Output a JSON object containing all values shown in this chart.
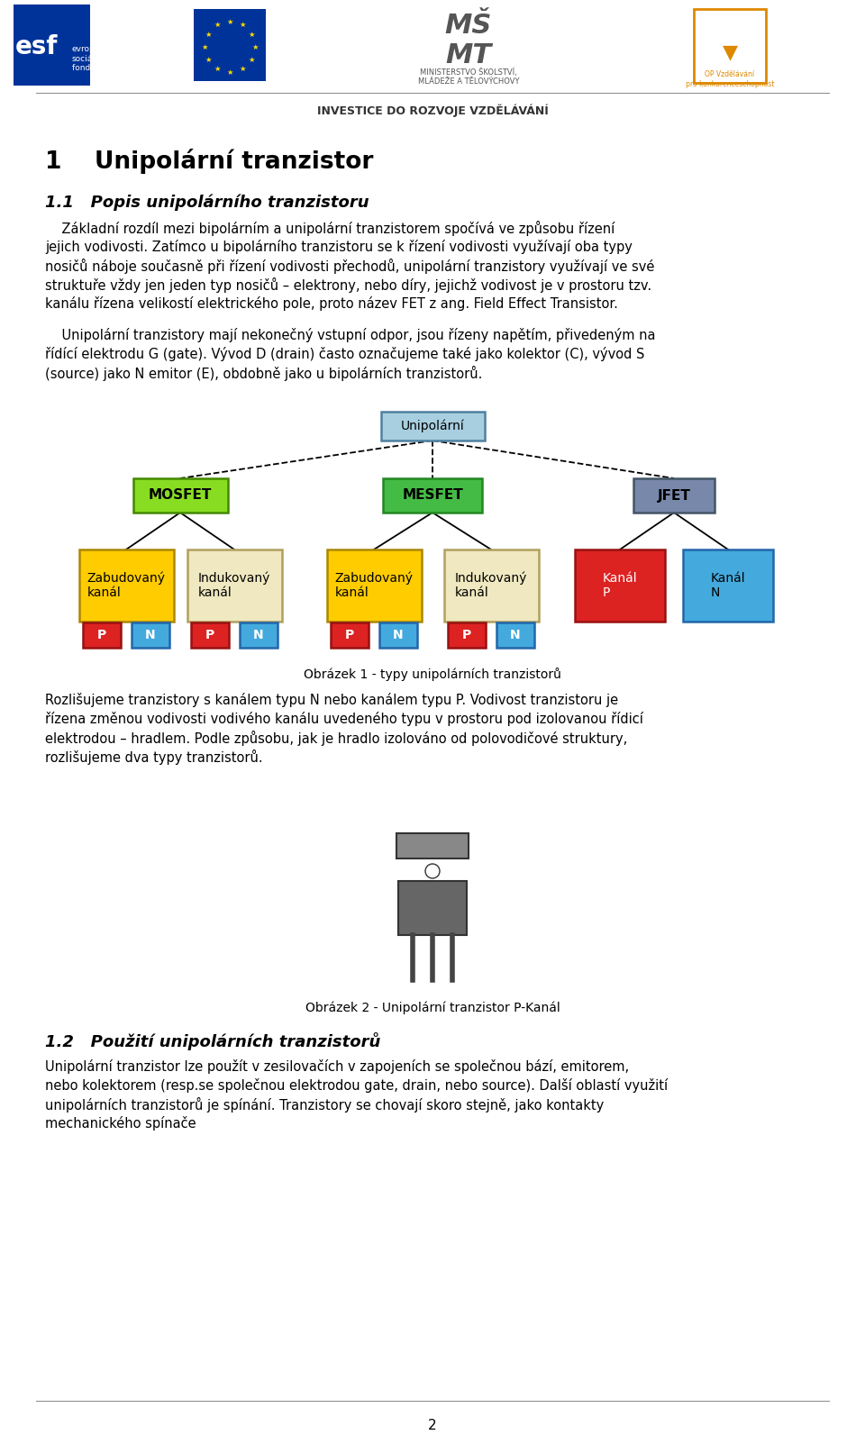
{
  "title_section": "1    Unipolární tranzistor",
  "subtitle": "1.1   Popis unipolárního tranzistoru",
  "intro_lines": [
    "    Základní rozdíl mezi bipolárním a unipolární tranzistorem spočívá ve způsobu řízení",
    "jejich vodivosti. Zatímco u bipolárního tranzistoru se k řízení vodivosti využívají oba typy",
    "nosičů náboje současně při řízení vodivosti přechodů, unipolární tranzistory využívají ve své",
    "struktuře vždy jen jeden typ nosičů – elektrony, nebo díry, jejichž vodivost je v prostoru tzv.",
    "kanálu řízena velikostí elektrického pole, proto název FET z ang. Field Effect Transistor."
  ],
  "para2_lines": [
    "    Unipolární tranzistory mají nekonečný vstupní odpor, jsou řízeny napětím, přivedeným na",
    "řídící elektrodu G (gate). Vývod D (drain) často označujeme také jako kolektor (C), vývod S",
    "(source) jako N emitor (E), obdobně jako u bipolárních tranzistorů."
  ],
  "diagram_caption": "Obrázek 1 - typy unipolárních tranzistorů",
  "para3_lines": [
    "Rozlišujeme tranzistory s kanálem typu N nebo kanálem typu P. Vodivost tranzistoru je",
    "řízena změnou vodivosti vodivého kanálu uvedeného typu v prostoru pod izolovanou řídicí",
    "elektrodou – hradlem. Podle způsobu, jak je hradlo izolováno od polovodičové struktury,",
    "rozlišujeme dva typy tranzistorů."
  ],
  "fig2_caption": "Obrázek 2 - Unipolární tranzistor P-Kanál",
  "section2_title": "1.2   Použití unipolárních tranzistorů",
  "section2_lines": [
    "Unipolární tranzistor lze použít v zesilovačích v zapojeních se společnou bází, emitorem,",
    "nebo kolektorem (resp.se společnou elektrodou gate, drain, nebo source). Další oblastí využití",
    "unipolárních tranzistorů je spínání. Tranzistory se chovají skoro stejně, jako kontakty",
    "mechanického spínače"
  ],
  "page_number": "2",
  "investice_text": "INVESTICE DO ROZVOJE VZDĚLÁVÁNÍ",
  "bg_color": "#ffffff",
  "text_color": "#000000",
  "node_unipolar_bg": "#a8cfe0",
  "node_unipolar_border": "#5080a0",
  "node_mosfet_bg": "#88dd22",
  "node_mosfet_border": "#448800",
  "node_mesfet_bg": "#44bb44",
  "node_mesfet_border": "#228822",
  "node_jfet_bg": "#7888aa",
  "node_jfet_border": "#445566",
  "node_zab_bg": "#ffcc00",
  "node_zab_border": "#aa8800",
  "node_ind_bg": "#f0e8c0",
  "node_ind_border": "#b0a060",
  "node_kanal_p_bg": "#dd2222",
  "node_kanal_p_border": "#991111",
  "node_kanal_n_bg": "#44aadd",
  "node_kanal_n_border": "#2266aa",
  "node_p_bg": "#dd2222",
  "node_p_border": "#991111",
  "node_n_bg": "#44aadd",
  "node_n_border": "#2266aa"
}
